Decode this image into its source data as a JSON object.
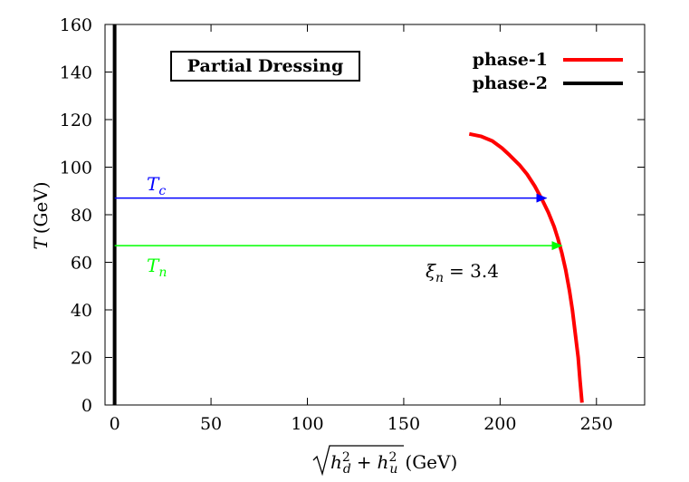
{
  "chart_data": {
    "type": "line",
    "title": "Partial Dressing",
    "xlabel": "√(h_d² + h_u²) (GeV)",
    "xlabel_parts": {
      "sqrt_body": "h",
      "d_sub": "d",
      "u_sub": "u",
      "sup": "2",
      "plus": "+",
      "unit": "(GeV)"
    },
    "ylabel": "T (GeV)",
    "ylabel_parts": {
      "var": "T",
      "unit": "(GeV)"
    },
    "xlim": [
      -5,
      275
    ],
    "ylim": [
      0,
      160
    ],
    "xticks": [
      0,
      50,
      100,
      150,
      200,
      250
    ],
    "yticks": [
      0,
      20,
      40,
      60,
      80,
      100,
      120,
      140,
      160
    ],
    "grid": false,
    "legend_position": "top-right",
    "series": [
      {
        "name": "phase-1",
        "color": "#ff0000",
        "x": [
          184,
          190,
          196,
          201,
          205,
          210,
          214,
          218,
          222,
          225,
          228,
          230,
          232,
          234,
          236,
          237.5,
          239,
          240.5,
          241.5,
          242.5
        ],
        "y": [
          114,
          113,
          111,
          108,
          105,
          101,
          97,
          92,
          86,
          81,
          75,
          70,
          64,
          57,
          48,
          40,
          30,
          20,
          10,
          1
        ]
      },
      {
        "name": "phase-2",
        "color": "#000000",
        "x": [
          0,
          0
        ],
        "y": [
          0,
          160
        ]
      }
    ],
    "arrows": [
      {
        "label": "T",
        "sub": "c",
        "y": 87,
        "x_start": 0,
        "x_end": 224,
        "color": "#0000ff"
      },
      {
        "label": "T",
        "sub": "n",
        "y": 67,
        "x_start": 0,
        "x_end": 232,
        "color": "#00ff00"
      }
    ],
    "annotation": {
      "symbol": "ξ",
      "sub": "n",
      "text": "= 3.4"
    }
  }
}
